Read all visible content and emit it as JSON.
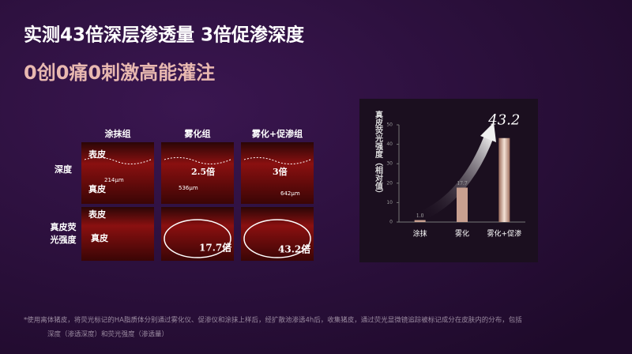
{
  "header": {
    "title": "实测43倍深层渗透量 3倍促渗深度",
    "subtitle": "0创0痛0刺激高能灌注"
  },
  "grid": {
    "columns": [
      "涂抹组",
      "雾化组",
      "雾化+促渗组"
    ],
    "rows": [
      {
        "label": "深度",
        "cells": [
          [
            "表皮",
            "214μm",
            "真皮"
          ],
          [
            "2.5倍",
            "536μm"
          ],
          [
            "3倍",
            "642μm"
          ]
        ]
      },
      {
        "label": "真皮荧光强度",
        "cells": [
          [
            "表皮",
            "真皮"
          ],
          [
            "17.7倍"
          ],
          [
            "43.2倍"
          ]
        ]
      }
    ]
  },
  "chart_data": {
    "type": "bar",
    "y_label": "真皮荧光强度（相对值）",
    "categories": [
      "涂抹",
      "雾化",
      "雾化+促渗"
    ],
    "values": [
      1.0,
      17.7,
      43.2
    ],
    "value_labels": [
      "1.0",
      "17.7",
      "43.2"
    ],
    "ylim": [
      0,
      50
    ],
    "yticks": [
      0,
      10,
      20,
      30,
      40,
      50
    ],
    "color": "#c9a090"
  },
  "footnote": [
    "*使用离体猪皮，将荧光标记的HA脂质体分别通过雾化仪、促渗仪和涂抹上样后，经扩散池渗透4h后，收集猪皮，通过荧光显微镜追踪被标记成分在皮肤内的分布，包括",
    "深度（渗透深度）和荧光强度（渗透量）"
  ]
}
